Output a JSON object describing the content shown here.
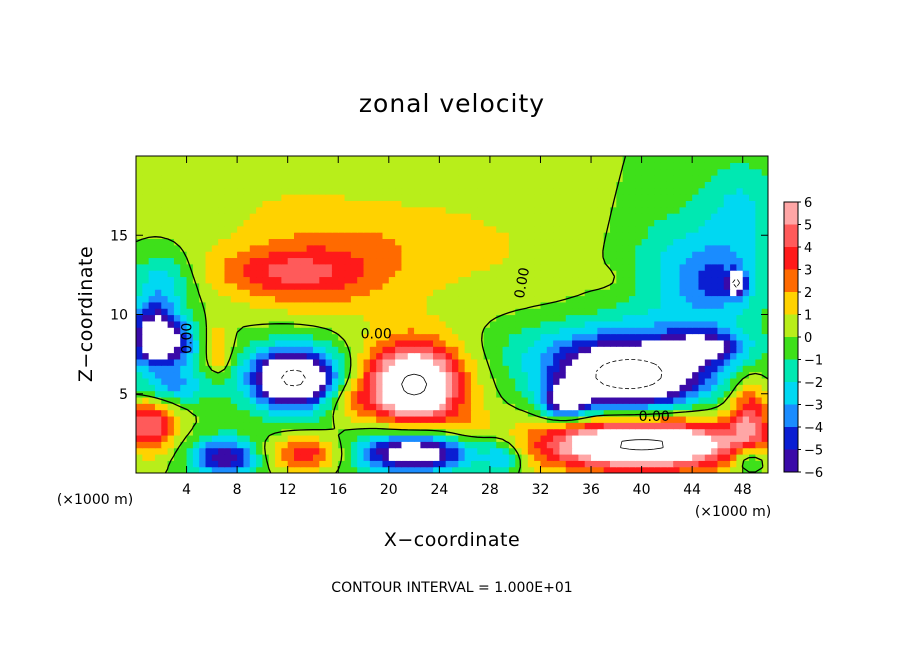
{
  "chart_data": {
    "type": "heatmap",
    "title": "zonal velocity",
    "xlabel": "X−coordinate",
    "ylabel": "Z−coordinate",
    "x_unit_left": "(×1000 m)",
    "x_unit_right": "(×1000 m)",
    "footer": "CONTOUR INTERVAL = 1.000E+01",
    "xlim": [
      0,
      50
    ],
    "ylim": [
      0,
      20
    ],
    "xticks": [
      4,
      8,
      12,
      16,
      20,
      24,
      28,
      32,
      36,
      40,
      44,
      48
    ],
    "yticks": [
      5,
      10,
      15
    ],
    "colorbar": {
      "levels": [
        6,
        5,
        4,
        3,
        2,
        1,
        0,
        -1,
        -2,
        -3,
        -4,
        -5,
        -6
      ],
      "labels": [
        "6",
        "5",
        "4",
        "3",
        "2",
        "1",
        "0",
        "−1",
        "−2",
        "−3",
        "−4",
        "−5",
        "−6"
      ],
      "colors": [
        "#ffa6a6",
        "#ff5a5a",
        "#ff1a1a",
        "#ff6a00",
        "#ffd200",
        "#b8ee1a",
        "#3ee01a",
        "#00e8b2",
        "#00d8f2",
        "#1a8cff",
        "#0a1ed2",
        "#3a0aa8"
      ]
    },
    "contour_labels": [
      {
        "text": "0.00",
        "x": 19,
        "z": 8.8,
        "angle": 0
      },
      {
        "text": "0.00",
        "x": 4,
        "z": 8.5,
        "angle": -90
      },
      {
        "text": "0.00",
        "x": 30.5,
        "z": 12,
        "angle": -80
      },
      {
        "text": "0.00",
        "x": 41,
        "z": 3.6,
        "angle": 0
      }
    ],
    "blobs": [
      {
        "x": 24,
        "z": 14,
        "rx": 22,
        "rz": 4,
        "v": 0.9
      },
      {
        "x": 14,
        "z": 12.5,
        "rx": 6,
        "rz": 2.2,
        "v": 2.8
      },
      {
        "x": 10,
        "z": 12.8,
        "rx": 5,
        "rz": 1.4,
        "v": 1.4
      },
      {
        "x": 20,
        "z": 15,
        "rx": 8,
        "rz": 2.5,
        "v": 0.8
      },
      {
        "x": 12,
        "z": 17,
        "rx": 6,
        "rz": 2,
        "v": 0.6
      },
      {
        "x": 44,
        "z": 13,
        "rx": 6,
        "rz": 4,
        "v": -2.8
      },
      {
        "x": 46,
        "z": 12,
        "rx": 3,
        "rz": 2,
        "v": -2.2
      },
      {
        "x": 48,
        "z": 17,
        "rx": 3,
        "rz": 3,
        "v": -1.8
      },
      {
        "x": 38,
        "z": 8,
        "rx": 9,
        "rz": 2,
        "v": -2.4
      },
      {
        "x": 38,
        "z": 12.2,
        "rx": 2,
        "rz": 1,
        "v": 0.5
      },
      {
        "x": 2,
        "z": 12,
        "rx": 2.5,
        "rz": 2,
        "v": -2.8
      },
      {
        "x": 1.5,
        "z": 9.5,
        "rx": 2,
        "rz": 1.5,
        "v": -4
      },
      {
        "x": 2,
        "z": 8,
        "rx": 2.5,
        "rz": 1.5,
        "v": -7
      },
      {
        "x": 6.5,
        "z": 7.8,
        "rx": 1,
        "rz": 1.6,
        "v": 2.6
      },
      {
        "x": 12.5,
        "z": 6,
        "rx": 3,
        "rz": 1.6,
        "v": -8
      },
      {
        "x": 12.5,
        "z": 6,
        "rx": 4.5,
        "rz": 2.5,
        "v": -3
      },
      {
        "x": 22,
        "z": 5.5,
        "rx": 3.2,
        "rz": 2.2,
        "v": 8
      },
      {
        "x": 22,
        "z": 6,
        "rx": 4.8,
        "rz": 3.2,
        "v": 3
      },
      {
        "x": 39,
        "z": 6,
        "rx": 5,
        "rz": 1.7,
        "v": -8
      },
      {
        "x": 39,
        "z": 6,
        "rx": 7.5,
        "rz": 2.6,
        "v": -3.5
      },
      {
        "x": 34,
        "z": 4.5,
        "rx": 1.8,
        "rz": 1,
        "v": -6
      },
      {
        "x": 40,
        "z": 1.8,
        "rx": 7,
        "rz": 1.3,
        "v": 8
      },
      {
        "x": 40,
        "z": 2,
        "rx": 10,
        "rz": 2.4,
        "v": 3
      },
      {
        "x": 13.5,
        "z": 1.3,
        "rx": 3,
        "rz": 1.1,
        "v": 4
      },
      {
        "x": 22,
        "z": 1.3,
        "rx": 4,
        "rz": 1.1,
        "v": -6
      },
      {
        "x": 22,
        "z": 1.5,
        "rx": 6,
        "rz": 1.8,
        "v": -2.5
      },
      {
        "x": 7,
        "z": 1,
        "rx": 2.5,
        "rz": 1.2,
        "v": -6
      },
      {
        "x": 1,
        "z": 3,
        "rx": 2,
        "rz": 1.6,
        "v": 5
      },
      {
        "x": 3,
        "z": 5.5,
        "rx": 3,
        "rz": 1,
        "v": -3
      },
      {
        "x": 48.5,
        "z": 3.5,
        "rx": 1.5,
        "rz": 2.5,
        "v": 4
      },
      {
        "x": 48.5,
        "z": 1,
        "rx": 1.5,
        "rz": 1,
        "v": -4
      },
      {
        "x": 29,
        "z": 1,
        "rx": 1.5,
        "rz": 1,
        "v": -3
      },
      {
        "x": 26,
        "z": 3,
        "rx": 2,
        "rz": 1,
        "v": 1.5
      },
      {
        "x": 17,
        "z": 4.5,
        "rx": 2,
        "rz": 1.5,
        "v": 2
      },
      {
        "x": 45,
        "z": 8,
        "rx": 3,
        "rz": 1,
        "v": -4.5
      },
      {
        "x": 47.5,
        "z": 12,
        "rx": 0.6,
        "rz": 0.6,
        "v": -9
      }
    ]
  }
}
